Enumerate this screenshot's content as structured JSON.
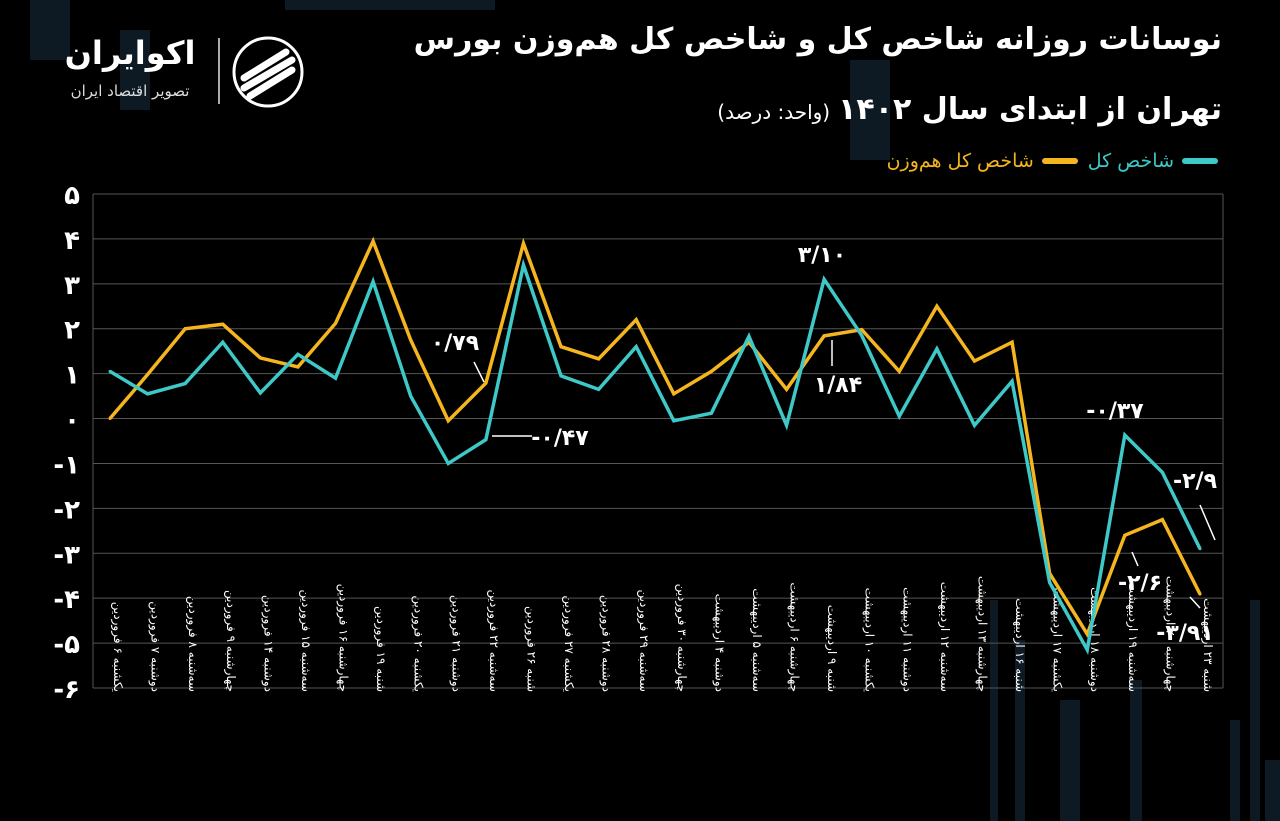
{
  "title_line1": "نوسانات روزانه شاخص کل و شاخص کل هم‌وزن بورس",
  "title_line2": "تهران از ابتدای سال ۱۴۰۲",
  "title_unit": "(واحد: درصد)",
  "brand": {
    "name": "اکوایران",
    "tagline": "تصویر اقتصاد ایران"
  },
  "colors": {
    "background": "#000000",
    "total_index": "#3ec8c8",
    "equal_weight_index": "#f5b51e",
    "grid": "#555555"
  },
  "chart_data": {
    "type": "line",
    "categories": [
      "یکشنبه ۶ فروردین",
      "دوشنبه ۷ فروردین",
      "سه‌شنبه ۸ فروردین",
      "چهارشنبه ۹ فروردین",
      "دوشنبه ۱۴ فروردین",
      "سه‌شنبه ۱۵ فروردین",
      "چهارشنبه ۱۶ فروردین",
      "شنبه ۱۹ فروردین",
      "یکشنبه ۲۰ فروردین",
      "دوشنبه ۲۱ فروردین",
      "سه‌شنبه ۲۲ فروردین",
      "شنبه ۲۶ فروردین",
      "یکشنبه ۲۷ فروردین",
      "دوشنبه ۲۸ فروردین",
      "سه‌شنبه ۲۹ فروردین",
      "چهارشنبه ۳۰ فروردین",
      "دوشنبه ۴ اردیبهشت",
      "سه‌شنبه ۵ اردیبهشت",
      "چهارشنبه ۶ اردیبهشت",
      "شنبه ۹ اردیبهشت",
      "یکشنبه ۱۰ اردیبهشت",
      "دوشنبه ۱۱ اردیبهشت",
      "سه‌شنبه ۱۲ اردیبهشت",
      "چهارشنبه ۱۳ اردیبهشت",
      "شنبه ۱۶ اردیبهشت",
      "یکشنبه ۱۷ اردیبهشت",
      "دوشنبه ۱۸ اردیبهشت",
      "سه‌شنبه ۱۹ اردیبهشت",
      "چهارشنبه ۲۰ اردیبهشت",
      "شنبه ۲۳ اردیبهشت"
    ],
    "series": [
      {
        "name": "شاخص کل",
        "values": [
          1.05,
          0.55,
          0.78,
          1.7,
          0.57,
          1.43,
          0.9,
          3.05,
          0.5,
          -1.0,
          -0.47,
          3.42,
          0.95,
          0.65,
          1.6,
          -0.05,
          0.12,
          1.83,
          -0.15,
          3.1,
          1.85,
          0.05,
          1.55,
          -0.15,
          0.83,
          -3.65,
          -5.15,
          -0.37,
          -1.2,
          -2.9
        ]
      },
      {
        "name": "شاخص کل هم‌وزن",
        "values": [
          0.0,
          0.98,
          2.0,
          2.1,
          1.35,
          1.15,
          2.12,
          3.95,
          1.75,
          -0.05,
          0.79,
          3.9,
          1.6,
          1.33,
          2.2,
          0.55,
          1.05,
          1.7,
          0.65,
          1.84,
          1.98,
          1.05,
          2.5,
          1.28,
          1.7,
          -3.45,
          -4.8,
          -2.6,
          -2.25,
          -3.91
        ]
      }
    ],
    "y_ticks": [
      "۵",
      "۴",
      "۳",
      "۲",
      "۱",
      "۰",
      "-۱",
      "-۲",
      "-۳",
      "-۴",
      "-۵",
      "-۶"
    ],
    "ylim": [
      -6,
      5
    ],
    "grid": true,
    "legend_position": "top-right",
    "annotations": [
      "۰/۷۹",
      "-۰/۴۷",
      "۳/۱۰",
      "۱/۸۴",
      "-۰/۳۷",
      "-۲/۹",
      "-۲/۶",
      "-۳/۹۱"
    ]
  }
}
